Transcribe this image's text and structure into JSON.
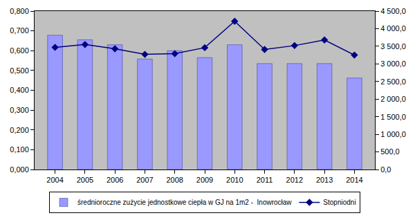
{
  "chart_data": {
    "type": "bar",
    "categories": [
      "2004",
      "2005",
      "2006",
      "2007",
      "2008",
      "2009",
      "2010",
      "2011",
      "2012",
      "2013",
      "2014"
    ],
    "series": [
      {
        "name": "średnioroczne zużycie jednostkowe ciepła w GJ na 1m2 -  Inowrocław",
        "type": "bar",
        "color": "#9999ff",
        "values": [
          0.678,
          0.655,
          0.63,
          0.558,
          0.6,
          0.565,
          0.63,
          0.535,
          0.535,
          0.535,
          0.462
        ]
      },
      {
        "name": "Stopniodni",
        "type": "line",
        "axis": "y2",
        "color": "#000080",
        "marker": "diamond",
        "values": [
          3470,
          3550,
          3430,
          3270,
          3290,
          3460,
          4210,
          3410,
          3520,
          3680,
          3250
        ]
      }
    ],
    "ylim": [
      0,
      0.8
    ],
    "yticks": [
      {
        "value": 0,
        "label": "0,000"
      },
      {
        "value": 0.1,
        "label": "0,100"
      },
      {
        "value": 0.2,
        "label": "0,200"
      },
      {
        "value": 0.3,
        "label": "0,300"
      },
      {
        "value": 0.4,
        "label": "0,400"
      },
      {
        "value": 0.5,
        "label": "0,500"
      },
      {
        "value": 0.6,
        "label": "0,600"
      },
      {
        "value": 0.7,
        "label": "0,700"
      },
      {
        "value": 0.8,
        "label": "0,800"
      }
    ],
    "y2lim": [
      0,
      4500
    ],
    "y2ticks": [
      {
        "value": 0,
        "label": "0,0"
      },
      {
        "value": 500,
        "label": "500,0"
      },
      {
        "value": 1000,
        "label": "1 000,0"
      },
      {
        "value": 1500,
        "label": "1 500,0"
      },
      {
        "value": 2000,
        "label": "2 000,0"
      },
      {
        "value": 2500,
        "label": "2 500,0"
      },
      {
        "value": 3000,
        "label": "3 000,0"
      },
      {
        "value": 3500,
        "label": "3 500,0"
      },
      {
        "value": 4000,
        "label": "4 000,0"
      },
      {
        "value": 4500,
        "label": "4 500,0"
      }
    ],
    "grid": false,
    "legend": "bottom"
  }
}
